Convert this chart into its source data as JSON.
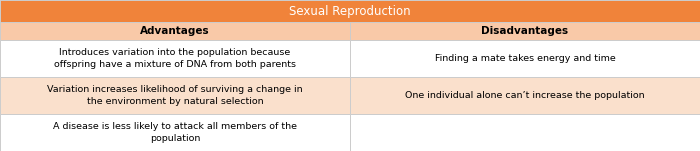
{
  "title": "Sexual Reproduction",
  "title_bg": "#F0833A",
  "title_color": "#FFFFFF",
  "header_bg": "#F9C9A8",
  "header_color": "#000000",
  "border_color": "#CCCCCC",
  "col_headers": [
    "Advantages",
    "Disadvantages"
  ],
  "rows": [
    {
      "left": "Introduces variation into the population because\noffspring have a mixture of DNA from both parents",
      "right": "Finding a mate takes energy and time",
      "bg": "#FFFFFF"
    },
    {
      "left": "Variation increases likelihood of surviving a change in\nthe environment by natural selection",
      "right": "One individual alone can’t increase the population",
      "bg": "#FAE0CC"
    },
    {
      "left": "A disease is less likely to attack all members of the\npopulation",
      "right": "",
      "bg": "#FFFFFF"
    }
  ],
  "fig_width": 7.0,
  "fig_height": 1.51,
  "dpi": 100
}
